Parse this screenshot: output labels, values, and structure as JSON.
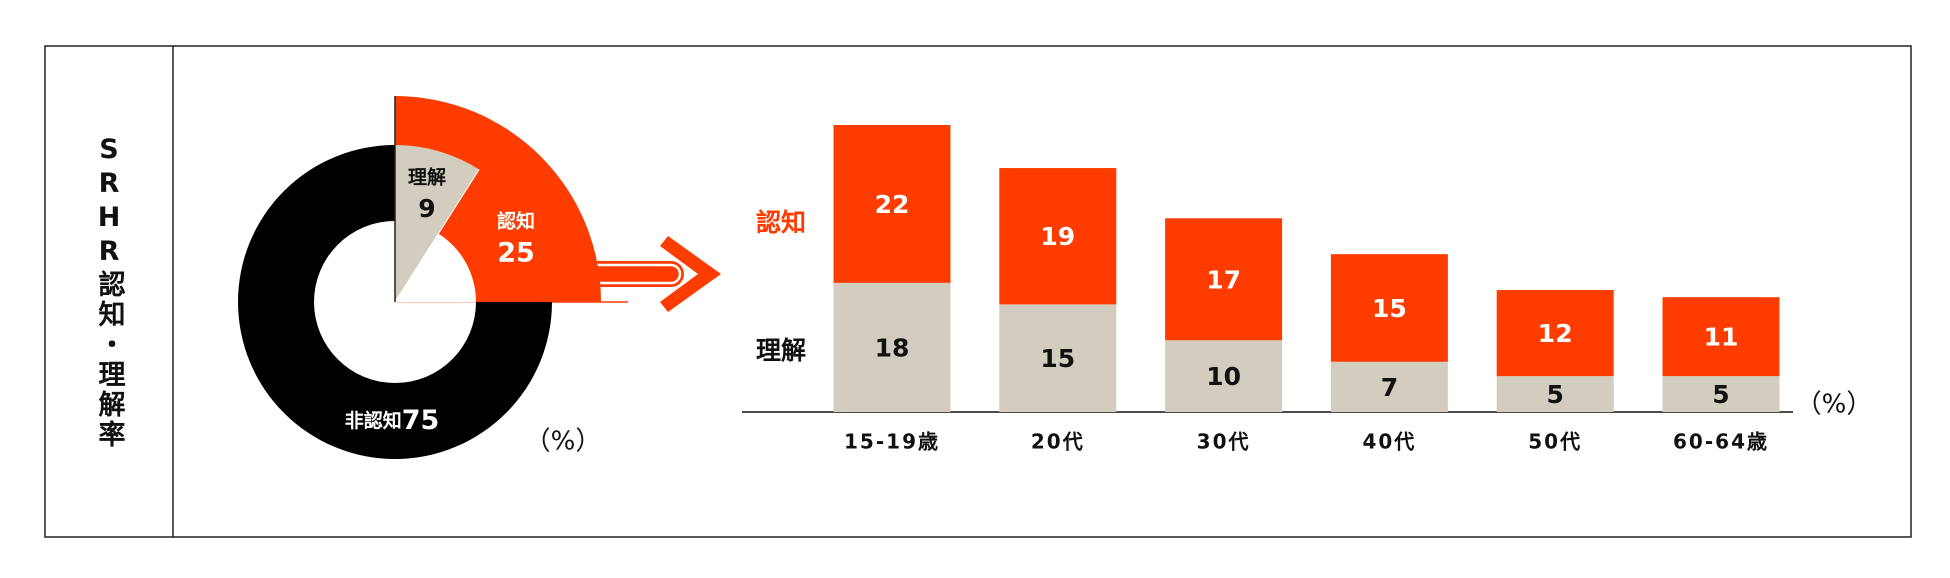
{
  "title": "SRHR認知・理解率",
  "chart_data": [
    {
      "type": "donut",
      "categories": [
        "認知",
        "理解",
        "非認知"
      ],
      "values": [
        25,
        9,
        75
      ],
      "colors": [
        "#ff3c00",
        "#d3cdc0",
        "#000000"
      ],
      "unit": "（%）"
    },
    {
      "type": "stacked-bar",
      "categories": [
        "15-19歳",
        "20代",
        "30代",
        "40代",
        "50代",
        "60-64歳"
      ],
      "series": [
        {
          "name": "理解",
          "color": "#d3cdc0",
          "values": [
            18,
            15,
            10,
            7,
            5,
            5
          ]
        },
        {
          "name": "認知",
          "color": "#ff3c00",
          "values": [
            22,
            19,
            17,
            15,
            12,
            11
          ]
        }
      ],
      "ylim": [
        0,
        40
      ],
      "unit": "（%）"
    }
  ]
}
